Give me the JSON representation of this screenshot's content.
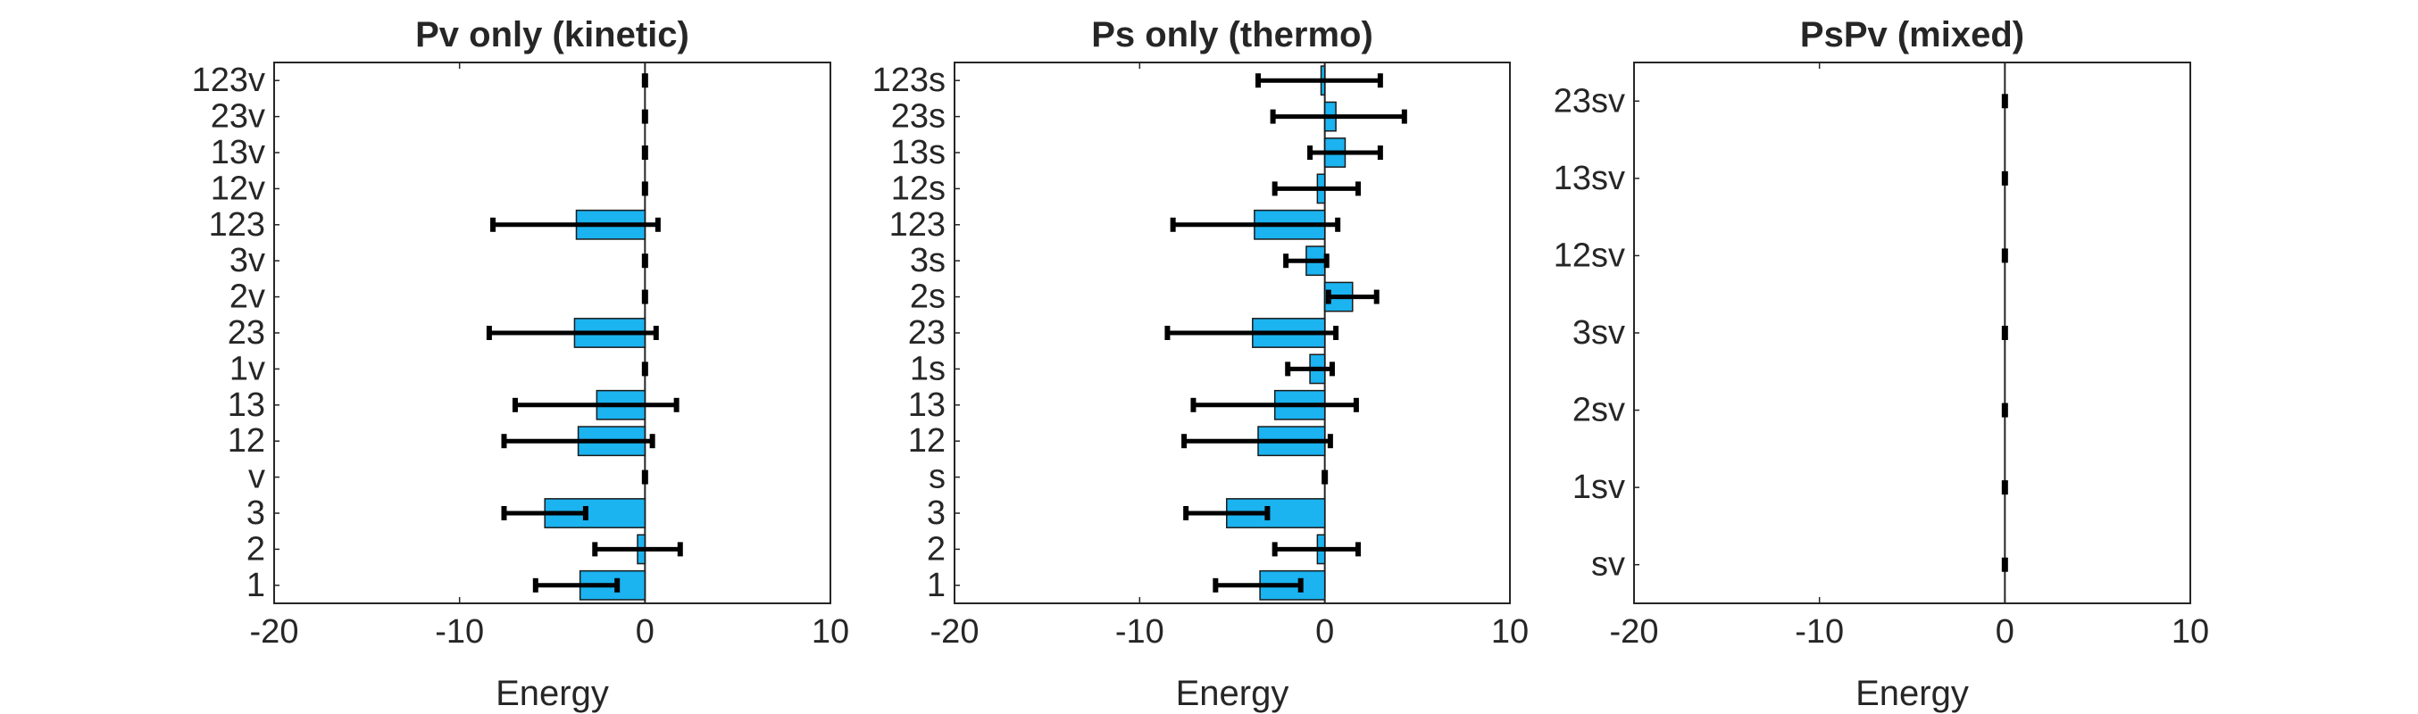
{
  "colors": {
    "bar": "#1bb3f0",
    "bar_edge": "#1a1a1a",
    "error": "#000000",
    "axis": "#262626"
  },
  "chart_data": [
    {
      "type": "bar",
      "orientation": "horizontal",
      "title": "Pv only (kinetic)",
      "xlabel": "Energy",
      "xlim": [
        -20,
        10
      ],
      "xticks": [
        -20,
        -10,
        0,
        10
      ],
      "categories": [
        "1",
        "2",
        "3",
        "v",
        "12",
        "13",
        "1v",
        "23",
        "2v",
        "3v",
        "123",
        "12v",
        "13v",
        "23v",
        "123v"
      ],
      "values": [
        -3.5,
        -0.4,
        -5.4,
        0.0,
        -3.6,
        -2.6,
        0.0,
        -3.8,
        0.0,
        0.0,
        -3.7,
        0.0,
        0.0,
        0.0,
        0.0
      ],
      "error_low": [
        -5.9,
        -2.7,
        -7.6,
        0.0,
        -7.6,
        -7.0,
        0.0,
        -8.4,
        0.0,
        0.0,
        -8.2,
        0.0,
        0.0,
        0.0,
        0.0
      ],
      "error_high": [
        -1.5,
        1.9,
        -3.2,
        0.0,
        0.4,
        1.7,
        0.0,
        0.6,
        0.0,
        0.0,
        0.7,
        0.0,
        0.0,
        0.0,
        0.0
      ]
    },
    {
      "type": "bar",
      "orientation": "horizontal",
      "title": "Ps only (thermo)",
      "xlabel": "Energy",
      "xlim": [
        -20,
        10
      ],
      "xticks": [
        -20,
        -10,
        0,
        10
      ],
      "categories": [
        "1",
        "2",
        "3",
        "s",
        "12",
        "13",
        "1s",
        "23",
        "2s",
        "3s",
        "123",
        "12s",
        "13s",
        "23s",
        "123s"
      ],
      "values": [
        -3.5,
        -0.4,
        -5.3,
        0.0,
        -3.6,
        -2.7,
        -0.8,
        -3.9,
        1.5,
        -1.0,
        -3.8,
        -0.4,
        1.1,
        0.6,
        -0.2
      ],
      "error_low": [
        -5.9,
        -2.7,
        -7.5,
        0.0,
        -7.6,
        -7.1,
        -2.0,
        -8.5,
        0.2,
        -2.1,
        -8.2,
        -2.7,
        -0.8,
        -2.8,
        -3.6
      ],
      "error_high": [
        -1.3,
        1.8,
        -3.1,
        0.0,
        0.3,
        1.7,
        0.4,
        0.6,
        2.8,
        0.1,
        0.7,
        1.8,
        3.0,
        4.3,
        3.0
      ]
    },
    {
      "type": "bar",
      "orientation": "horizontal",
      "title": "PsPv (mixed)",
      "xlabel": "Energy",
      "xlim": [
        -20,
        10
      ],
      "xticks": [
        -20,
        -10,
        0,
        10
      ],
      "categories": [
        "sv",
        "1sv",
        "2sv",
        "3sv",
        "12sv",
        "13sv",
        "23sv"
      ],
      "values": [
        0,
        0,
        0,
        0,
        0,
        0,
        0
      ],
      "error_low": [
        0,
        0,
        0,
        0,
        0,
        0,
        0
      ],
      "error_high": [
        0,
        0,
        0,
        0,
        0,
        0,
        0
      ]
    }
  ]
}
